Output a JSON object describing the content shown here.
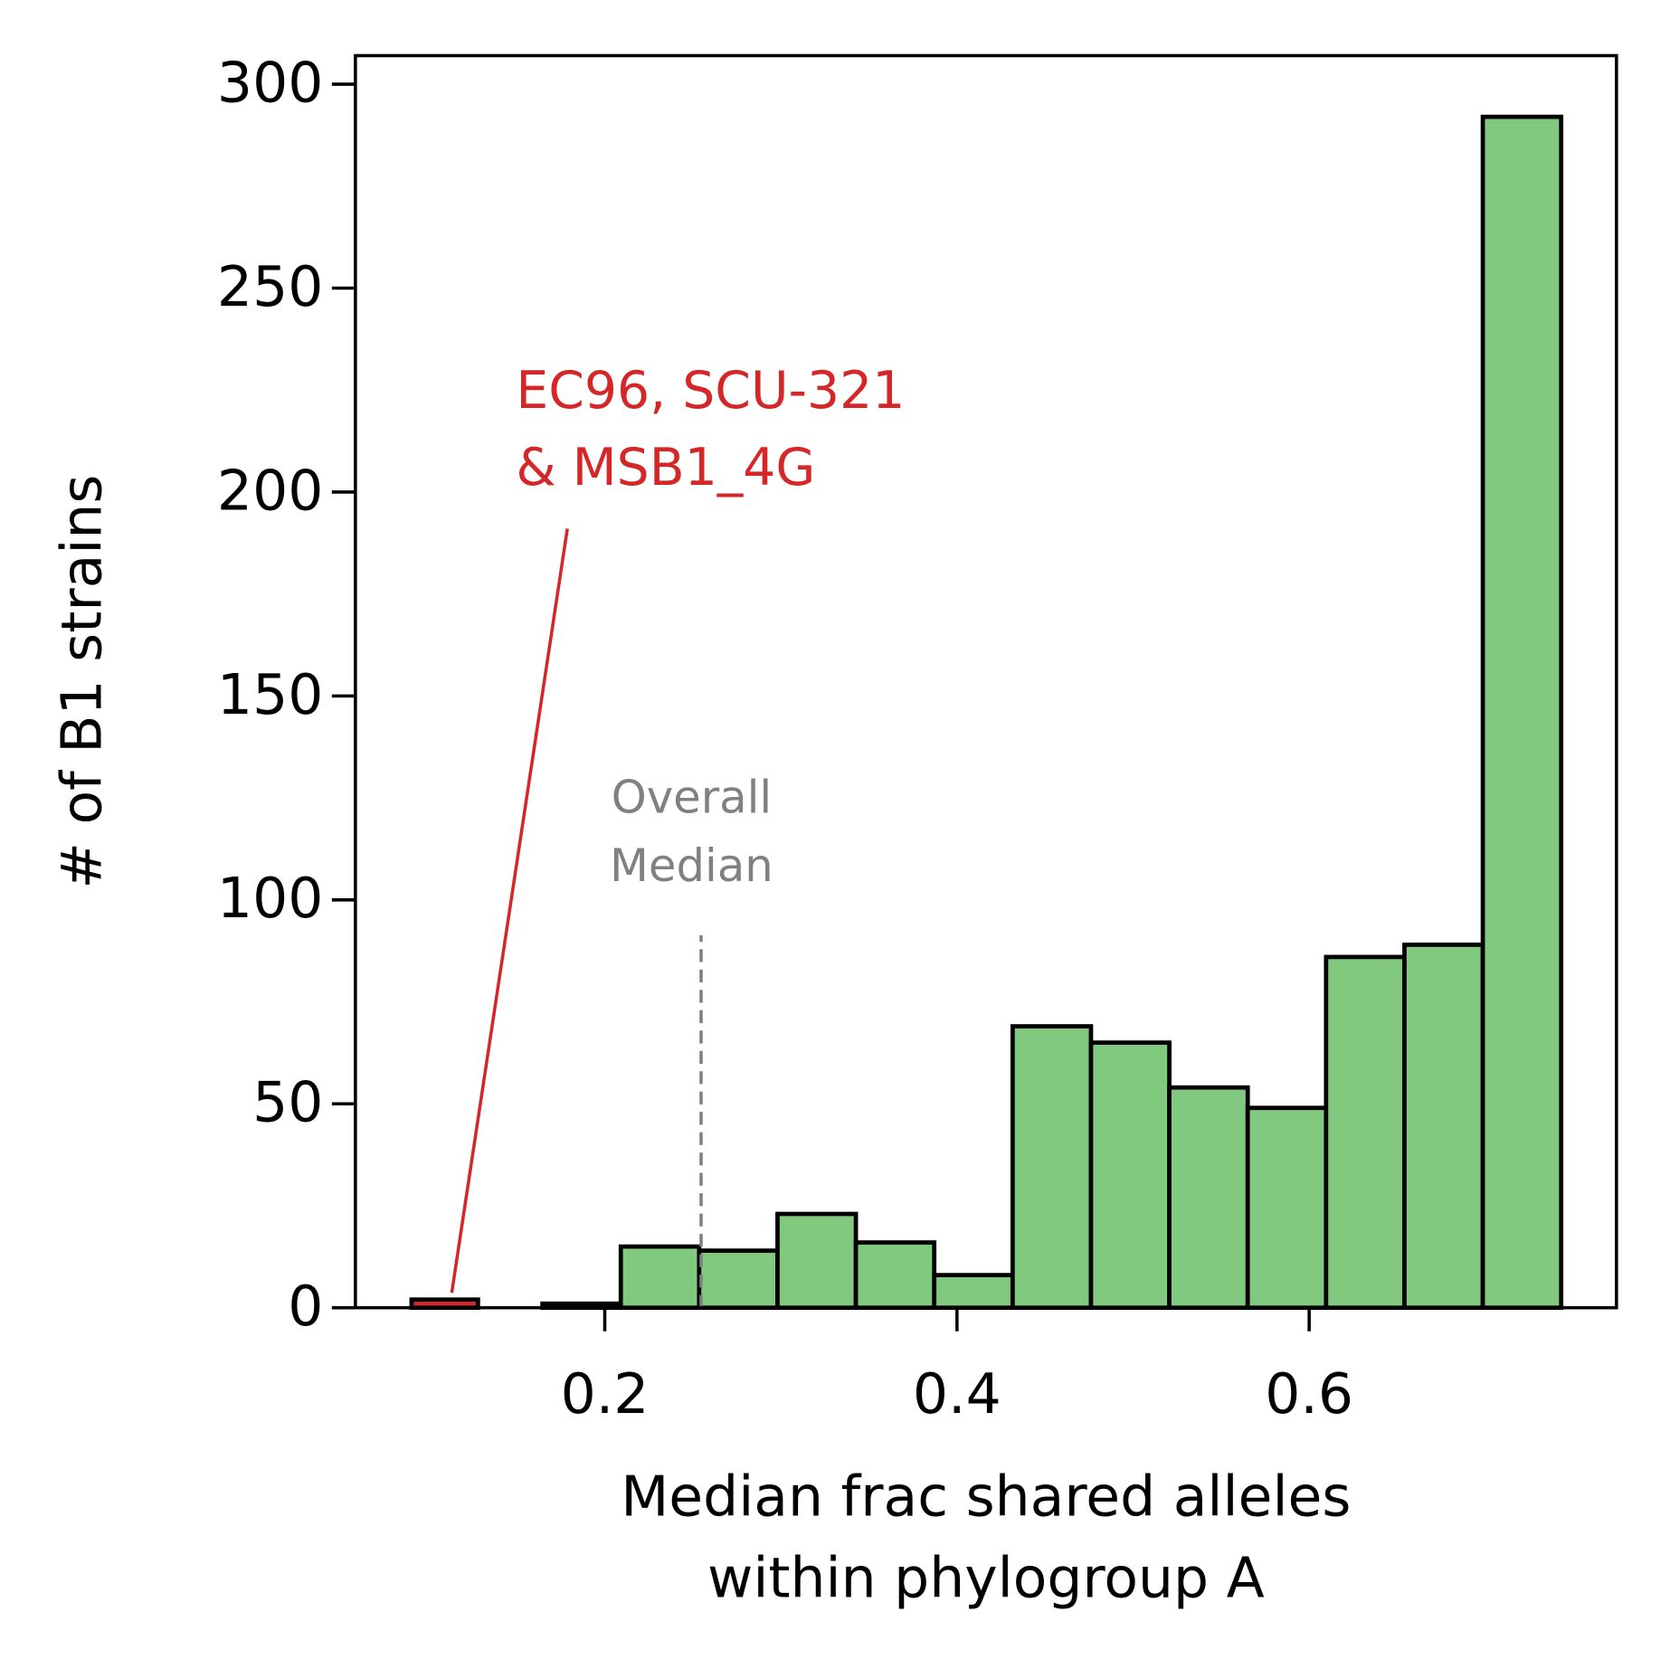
{
  "chart_data": {
    "type": "histogram",
    "xlabel": [
      "Median frac shared alleles",
      "within phylogroup A"
    ],
    "ylabel": "# of B1 strains",
    "xlim": [
      0.0584,
      0.7745
    ],
    "ylim": [
      0,
      307
    ],
    "xticks": [
      0.2,
      0.4,
      0.6
    ],
    "yticks": [
      0,
      50,
      100,
      150,
      200,
      250,
      300
    ],
    "grid": false,
    "histograms": [
      {
        "color": "#d62728",
        "bins": [
          0.0903,
          0.128
        ],
        "counts": [
          2
        ]
      },
      {
        "color": "#81c97e",
        "bins": [
          0.1646,
          0.2091,
          0.2536,
          0.2981,
          0.3426,
          0.3871,
          0.4316,
          0.4761,
          0.5206,
          0.5651,
          0.6096,
          0.6541,
          0.6986,
          0.7431
        ],
        "counts": [
          1,
          15,
          14,
          23,
          16,
          8,
          69,
          65,
          54,
          49,
          86,
          89,
          292
        ]
      }
    ],
    "median": 0.2547,
    "median_label": [
      "Overall",
      "Median"
    ],
    "median_color": "#808080",
    "highlight_label": [
      "EC96, SCU-321",
      "& MSB1_4G"
    ],
    "highlight_color": "#d62728"
  }
}
